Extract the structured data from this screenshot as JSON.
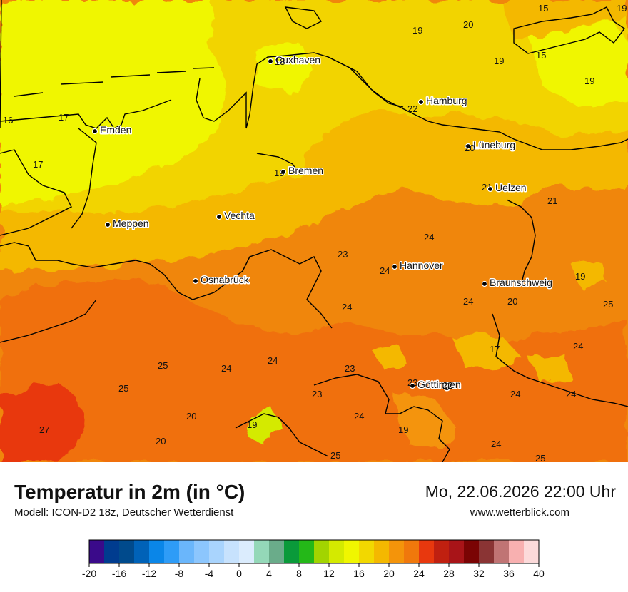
{
  "title": "Temperatur in 2m (in °C)",
  "model": "Modell: ICON-D2 18z, Deutscher Wetterdienst",
  "datetime": "Mo, 22.06.2026 22:00 Uhr",
  "website": "www.wetterblick.com",
  "cities": [
    {
      "name": "Cuxhaven"
    },
    {
      "name": "Hamburg"
    },
    {
      "name": "Emden"
    },
    {
      "name": "Bremen"
    },
    {
      "name": "Lüneburg"
    },
    {
      "name": "Uelzen"
    },
    {
      "name": "Vechta"
    },
    {
      "name": "Meppen"
    },
    {
      "name": "Hannover"
    },
    {
      "name": "Osnabrück"
    },
    {
      "name": "Braunschweig"
    },
    {
      "name": "Göttingen"
    }
  ],
  "values": [
    "15",
    "19",
    "19",
    "20",
    "15",
    "19",
    "19",
    "18",
    "22",
    "16",
    "17",
    "20",
    "17",
    "19",
    "21",
    "21",
    "24",
    "23",
    "24",
    "19",
    "24",
    "20",
    "25",
    "24",
    "17",
    "25",
    "24",
    "24",
    "23",
    "23",
    "24",
    "24",
    "25",
    "23",
    "24",
    "22",
    "20",
    "19",
    "27",
    "20",
    "19",
    "24",
    "24",
    "25",
    "25"
  ],
  "scale": {
    "ticks": [
      "-20",
      "-16",
      "-12",
      "-8",
      "-4",
      "0",
      "4",
      "8",
      "12",
      "16",
      "20",
      "24",
      "28",
      "32",
      "36",
      "40"
    ],
    "colors": [
      "#3a0a8a",
      "#003c8f",
      "#004a8c",
      "#0062b8",
      "#0a86e8",
      "#2e9cf7",
      "#6ab6fb",
      "#8cc6fd",
      "#a9d4fd",
      "#c7e2fd",
      "#dbecfd",
      "#94d8b8",
      "#6aac8a",
      "#0a9a3a",
      "#24b818",
      "#a2d400",
      "#d4ea00",
      "#f0f600",
      "#f2d800",
      "#f4b800",
      "#f4940a",
      "#f0780c",
      "#e8380e",
      "#c02010",
      "#a81418",
      "#7a0404",
      "#8a3434",
      "#c07474",
      "#f8b0b0",
      "#fcdada"
    ]
  }
}
